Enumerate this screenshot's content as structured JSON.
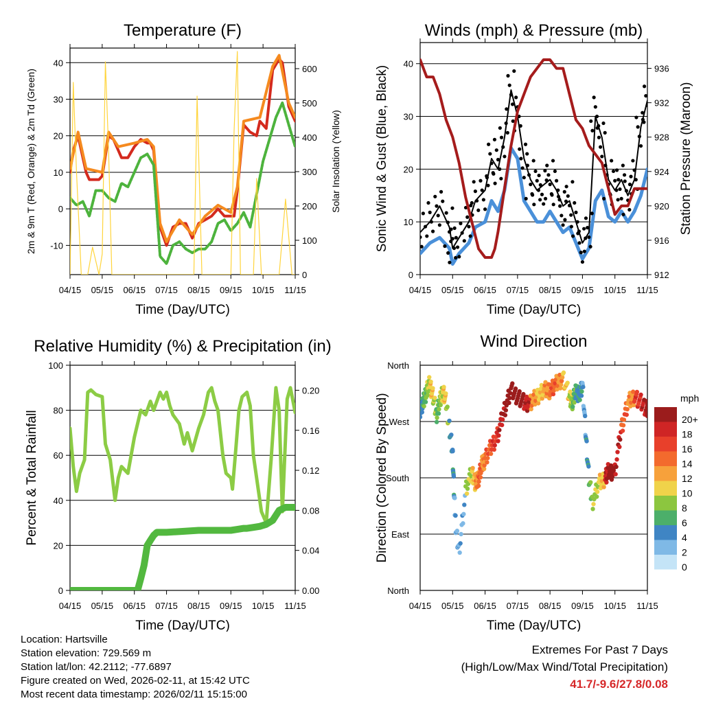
{
  "colors": {
    "temp_red": "#d42a1e",
    "temp_orange": "#f58a1f",
    "dewpoint_green": "#4db33d",
    "solar_yellow": "#ffd43b",
    "wind_blue": "#4a90d9",
    "gust_black": "#000000",
    "pressure_maroon": "#a51c1c",
    "rh_green": "#8ccc45",
    "precip_green": "#52b83f",
    "grid": "#000000"
  },
  "chart_data": [
    {
      "type": "line",
      "id": "temperature",
      "title": "Temperature (F)",
      "xlabel": "Time (Day/UTC)",
      "ylabel": "2m & 9m T (Red, Orange) & 2m Td (Green)",
      "y2label": "Solar Insolation (Yellow)",
      "x_ticks": [
        "04/15",
        "05/15",
        "06/15",
        "07/15",
        "08/15",
        "09/15",
        "10/15",
        "11/15"
      ],
      "xlim": [
        0,
        7
      ],
      "ylim": [
        -18,
        44
      ],
      "y_ticks": [
        -10,
        0,
        10,
        20,
        30,
        40
      ],
      "y2lim": [
        0,
        660
      ],
      "y2_ticks": [
        0,
        100,
        200,
        300,
        400,
        500,
        600
      ],
      "grid": true,
      "series": [
        {
          "name": "2m T",
          "color": "#d42a1e",
          "x": [
            0,
            0.1,
            0.25,
            0.4,
            0.5,
            0.6,
            0.75,
            0.9,
            1.0,
            1.2,
            1.35,
            1.5,
            1.6,
            1.8,
            2.0,
            2.2,
            2.4,
            2.5,
            2.6,
            2.8,
            3.0,
            3.2,
            3.4,
            3.6,
            3.8,
            4.0,
            4.2,
            4.4,
            4.6,
            4.8,
            5.0,
            5.1,
            5.2,
            5.4,
            5.6,
            5.8,
            5.9,
            6.1,
            6.3,
            6.5,
            6.6,
            6.8,
            7.0
          ],
          "y": [
            10,
            16,
            20,
            14,
            10,
            8,
            8,
            8,
            9,
            20,
            19,
            16,
            14,
            14,
            17,
            19,
            18,
            18,
            16,
            -5,
            -10,
            -5,
            -4,
            -4,
            -8,
            -4,
            -3,
            -2,
            0,
            -2,
            -2,
            -2,
            5,
            23,
            21,
            20,
            24,
            22,
            38,
            41,
            40,
            28,
            24
          ]
        },
        {
          "name": "9m T",
          "color": "#f58a1f",
          "x": [
            0,
            0.25,
            0.5,
            1.0,
            1.2,
            1.5,
            2.0,
            2.4,
            2.6,
            2.8,
            3.0,
            3.4,
            3.8,
            4.2,
            4.6,
            5.0,
            5.2,
            5.4,
            5.9,
            6.3,
            6.5,
            6.8,
            7.0
          ],
          "y": [
            11,
            21,
            11,
            10,
            21,
            17,
            18,
            19,
            17,
            -4,
            -9,
            -3,
            -7,
            -2,
            1,
            -1,
            6,
            24,
            25,
            39,
            42,
            29,
            25
          ]
        },
        {
          "name": "2m Td",
          "color": "#4db33d",
          "x": [
            0,
            0.2,
            0.4,
            0.6,
            0.8,
            1.0,
            1.2,
            1.4,
            1.6,
            1.8,
            2.0,
            2.2,
            2.4,
            2.6,
            2.8,
            3.0,
            3.2,
            3.4,
            3.6,
            3.8,
            4.0,
            4.2,
            4.4,
            4.6,
            4.8,
            5.0,
            5.2,
            5.4,
            5.6,
            5.8,
            6.0,
            6.2,
            6.4,
            6.6,
            6.8,
            7.0
          ],
          "y": [
            3,
            1,
            2,
            -2,
            5,
            5,
            3,
            2,
            7,
            6,
            10,
            14,
            15,
            12,
            -13,
            -15,
            -10,
            -9,
            -11,
            -12,
            -11,
            -11,
            -9,
            -4,
            -3,
            -6,
            -4,
            -1,
            -5,
            4,
            13,
            19,
            25,
            29,
            23,
            17
          ]
        },
        {
          "name": "Solar Insolation",
          "color": "#ffd43b",
          "axis": "y2",
          "x": [
            0,
            0.1,
            0.2,
            0.35,
            0.45,
            0.55,
            0.7,
            0.9,
            1.0,
            1.1,
            1.2,
            1.3,
            1.45,
            1.55,
            1.65,
            2.0,
            2.1,
            2.2,
            2.35,
            2.5,
            2.7,
            3.0,
            3.15,
            3.25,
            3.4,
            3.6,
            3.75,
            3.85,
            3.95,
            4.1,
            4.3,
            4.4,
            4.5,
            4.65,
            5.0,
            5.1,
            5.2,
            5.3,
            5.45,
            5.6,
            5.7,
            5.8,
            5.95,
            6.1,
            6.25,
            6.35,
            6.5,
            6.7,
            6.9,
            7.0
          ],
          "y": [
            0,
            560,
            300,
            0,
            0,
            0,
            80,
            0,
            60,
            620,
            360,
            0,
            0,
            0,
            0,
            0,
            0,
            0,
            0,
            0,
            0,
            0,
            0,
            0,
            0,
            0,
            0,
            0,
            520,
            0,
            0,
            0,
            0,
            0,
            0,
            420,
            650,
            0,
            0,
            0,
            0,
            280,
            0,
            0,
            0,
            0,
            0,
            220,
            0,
            0
          ]
        }
      ]
    },
    {
      "type": "line",
      "id": "winds_pressure",
      "title": "Winds (mph) & Pressure (mb)",
      "xlabel": "Time (Day/UTC)",
      "ylabel": "Sonic Wind & Gust (Blue, Black)",
      "y2label": "Station Pressure (Maroon)",
      "x_ticks": [
        "04/15",
        "05/15",
        "06/15",
        "07/15",
        "08/15",
        "09/15",
        "10/15",
        "11/15"
      ],
      "xlim": [
        0,
        7
      ],
      "ylim": [
        0,
        44
      ],
      "y_ticks": [
        0,
        10,
        20,
        30,
        40
      ],
      "y2lim": [
        912,
        939
      ],
      "y2_ticks": [
        912,
        916,
        920,
        924,
        928,
        932,
        936
      ],
      "grid": true,
      "series": [
        {
          "name": "Sonic Wind",
          "color": "#4a90d9",
          "x": [
            0,
            0.3,
            0.6,
            0.9,
            1.0,
            1.2,
            1.5,
            1.7,
            2.0,
            2.2,
            2.4,
            2.6,
            2.8,
            3.0,
            3.2,
            3.4,
            3.6,
            3.8,
            4.0,
            4.2,
            4.4,
            4.6,
            4.8,
            5.0,
            5.2,
            5.4,
            5.6,
            5.8,
            6.0,
            6.2,
            6.4,
            6.6,
            6.8,
            7.0
          ],
          "y": [
            4,
            6,
            7,
            5,
            2,
            4,
            6,
            9,
            10,
            14,
            12,
            16,
            24,
            22,
            14,
            12,
            10,
            10,
            12,
            10,
            8,
            9,
            6,
            3,
            5,
            14,
            16,
            11,
            10,
            12,
            10,
            12,
            15,
            20
          ]
        },
        {
          "name": "Gust",
          "color": "#000000",
          "x": [
            0,
            0.3,
            0.6,
            0.9,
            1.0,
            1.2,
            1.5,
            1.7,
            2.0,
            2.2,
            2.4,
            2.6,
            2.8,
            3.0,
            3.2,
            3.4,
            3.6,
            3.8,
            4.0,
            4.2,
            4.4,
            4.6,
            4.8,
            5.0,
            5.2,
            5.4,
            5.6,
            5.8,
            6.0,
            6.2,
            6.4,
            6.6,
            6.8,
            7.0
          ],
          "y": [
            8,
            10,
            13,
            9,
            5,
            7,
            10,
            14,
            16,
            22,
            20,
            26,
            35,
            30,
            22,
            18,
            16,
            17,
            18,
            16,
            13,
            14,
            10,
            6,
            8,
            30,
            26,
            18,
            16,
            18,
            15,
            18,
            28,
            33
          ]
        },
        {
          "name": "Station Pressure",
          "color": "#a51c1c",
          "axis": "y2",
          "x": [
            0,
            0.2,
            0.4,
            0.6,
            0.8,
            1.0,
            1.2,
            1.4,
            1.6,
            1.8,
            2.0,
            2.2,
            2.3,
            2.4,
            2.6,
            2.8,
            3.0,
            3.2,
            3.4,
            3.6,
            3.8,
            4.0,
            4.2,
            4.4,
            4.6,
            4.8,
            5.0,
            5.2,
            5.4,
            5.6,
            5.8,
            6.0,
            6.2,
            6.4,
            6.6,
            6.8,
            7.0
          ],
          "y": [
            937,
            935,
            935,
            933,
            930,
            928,
            925,
            921,
            918,
            915,
            914,
            914,
            915,
            917,
            922,
            927,
            931,
            933,
            935,
            936,
            937,
            937,
            936,
            936,
            933,
            930,
            929,
            927,
            926,
            925,
            922,
            919,
            920,
            920,
            922,
            922,
            922
          ]
        }
      ]
    },
    {
      "type": "line",
      "id": "humidity_precip",
      "title": "Relative Humidity (%) & Precipitation (in)",
      "xlabel": "Time (Day/UTC)",
      "ylabel": "Percent & Total Rainfall",
      "x_ticks": [
        "04/15",
        "05/15",
        "06/15",
        "07/15",
        "08/15",
        "09/15",
        "10/15",
        "11/15"
      ],
      "xlim": [
        0,
        7
      ],
      "ylim": [
        0,
        100
      ],
      "y_ticks": [
        0,
        20,
        40,
        60,
        80,
        100
      ],
      "y2lim": [
        0,
        0.225
      ],
      "y2_ticks": [
        "0.00",
        "0.04",
        "0.08",
        "0.12",
        "0.16",
        "0.20"
      ],
      "grid": true,
      "series": [
        {
          "name": "Relative Humidity",
          "color": "#8ccc45",
          "x": [
            0,
            0.1,
            0.2,
            0.3,
            0.45,
            0.55,
            0.65,
            0.8,
            1.0,
            1.1,
            1.25,
            1.4,
            1.5,
            1.6,
            1.8,
            2.0,
            2.2,
            2.35,
            2.5,
            2.6,
            2.8,
            2.9,
            3.0,
            3.1,
            3.2,
            3.4,
            3.55,
            3.65,
            3.8,
            4.0,
            4.15,
            4.3,
            4.4,
            4.5,
            4.6,
            4.75,
            4.85,
            5.0,
            5.05,
            5.15,
            5.25,
            5.35,
            5.5,
            5.6,
            5.7,
            5.85,
            5.95,
            6.1,
            6.25,
            6.4,
            6.5,
            6.6,
            6.75,
            6.85,
            7.0
          ],
          "y": [
            72,
            55,
            44,
            52,
            58,
            88,
            89,
            87,
            86,
            65,
            58,
            40,
            50,
            55,
            52,
            68,
            80,
            78,
            84,
            80,
            88,
            85,
            88,
            82,
            78,
            74,
            65,
            70,
            62,
            72,
            78,
            88,
            90,
            84,
            80,
            60,
            52,
            50,
            45,
            62,
            80,
            86,
            88,
            82,
            60,
            45,
            35,
            30,
            58,
            90,
            80,
            35,
            85,
            90,
            79
          ]
        },
        {
          "name": "Total Precipitation",
          "color": "#52b83f",
          "axis": "y2",
          "x": [
            0,
            1.5,
            2.1,
            2.2,
            2.3,
            2.4,
            2.5,
            2.6,
            2.7,
            2.8,
            3.0,
            3.5,
            4.0,
            4.5,
            5.0,
            5.2,
            5.4,
            5.5,
            5.7,
            5.9,
            6.1,
            6.3,
            6.5,
            6.7,
            7.0
          ],
          "y": [
            0,
            0,
            0,
            0.012,
            0.025,
            0.045,
            0.05,
            0.055,
            0.058,
            0.058,
            0.058,
            0.059,
            0.06,
            0.06,
            0.06,
            0.061,
            0.062,
            0.062,
            0.063,
            0.064,
            0.066,
            0.07,
            0.08,
            0.083,
            0.083
          ]
        }
      ]
    },
    {
      "type": "scatter",
      "id": "wind_direction",
      "title": "Wind Direction",
      "xlabel": "Time (Day/UTC)",
      "ylabel": "Direction (Colored By Speed)",
      "x_ticks": [
        "04/15",
        "05/15",
        "06/15",
        "07/15",
        "08/15",
        "09/15",
        "10/15",
        "11/15"
      ],
      "xlim": [
        0,
        7
      ],
      "y_ticks": [
        "North",
        "East",
        "South",
        "West",
        "North"
      ],
      "ylim": [
        0,
        360
      ],
      "grid": true,
      "legend_title": "mph",
      "legend_labels": [
        "20+",
        "18",
        "16",
        "14",
        "12",
        "10",
        "8",
        "6",
        "4",
        "2",
        "0"
      ],
      "legend_colors": [
        "#9b1c1c",
        "#cf2525",
        "#e8402b",
        "#f36a2d",
        "#f7a13b",
        "#f0d34a",
        "#8cc63f",
        "#4caf6a",
        "#3f85c4",
        "#7fb9e6",
        "#c4e4f7"
      ],
      "series": [
        {
          "name": "Direction",
          "x": [
            0,
            0.1,
            0.2,
            0.3,
            0.4,
            0.5,
            0.6,
            0.7,
            0.8,
            0.9,
            1.0,
            1.05,
            1.1,
            1.2,
            1.4,
            1.6,
            1.7,
            1.8,
            1.9,
            2.0,
            2.2,
            2.4,
            2.6,
            2.8,
            3.0,
            3.2,
            3.4,
            3.6,
            3.8,
            4.0,
            4.2,
            4.4,
            4.6,
            4.7,
            4.8,
            4.9,
            5.0,
            5.1,
            5.2,
            5.3,
            5.5,
            5.7,
            5.8,
            6.0,
            6.2,
            6.4,
            6.6,
            6.8,
            7.0
          ],
          "y": [
            290,
            300,
            320,
            330,
            310,
            280,
            300,
            320,
            300,
            260,
            220,
            150,
            100,
            60,
            160,
            190,
            170,
            180,
            200,
            210,
            230,
            250,
            290,
            320,
            310,
            300,
            300,
            310,
            320,
            320,
            330,
            340,
            310,
            300,
            320,
            310,
            330,
            250,
            180,
            140,
            170,
            180,
            190,
            190,
            260,
            300,
            310,
            300,
            290
          ],
          "speed": [
            4,
            6,
            8,
            10,
            8,
            6,
            8,
            10,
            8,
            4,
            4,
            2,
            2,
            2,
            8,
            10,
            12,
            14,
            12,
            14,
            16,
            18,
            20,
            20,
            20,
            18,
            12,
            10,
            12,
            14,
            12,
            10,
            8,
            6,
            4,
            4,
            2,
            4,
            6,
            8,
            10,
            18,
            20,
            18,
            14,
            12,
            16,
            18,
            20
          ]
        }
      ]
    }
  ],
  "info": {
    "location": "Location: Hartsville",
    "elevation": "Station elevation: 729.569 m",
    "latlon": "Station lat/lon: 42.2112; -77.6897",
    "created": "Figure created on Wed, 2026-02-11, at 15:42 UTC",
    "recent": "Most recent data timestamp: 2026/02/11 15:15:00"
  },
  "extremes": {
    "title": "Extremes For Past 7 Days",
    "subtitle": "(High/Low/Max Wind/Total Precipitation)",
    "values": "41.7/-9.6/27.8/0.08"
  }
}
